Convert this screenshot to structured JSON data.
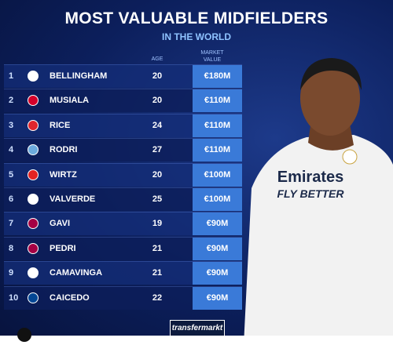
{
  "title": "MOST VALUABLE MIDFIELDERS",
  "subtitle": "IN THE WORLD",
  "headers": {
    "age": "AGE",
    "market_value": "MARKET VALUE"
  },
  "rows": [
    {
      "rank": 1,
      "name": "BELLINGHAM",
      "age": 20,
      "value": "€180M"
    },
    {
      "rank": 2,
      "name": "MUSIALA",
      "age": 20,
      "value": "€110M"
    },
    {
      "rank": 3,
      "name": "RICE",
      "age": 24,
      "value": "€110M"
    },
    {
      "rank": 4,
      "name": "RODRI",
      "age": 27,
      "value": "€110M"
    },
    {
      "rank": 5,
      "name": "WIRTZ",
      "age": 20,
      "value": "€100M"
    },
    {
      "rank": 6,
      "name": "VALVERDE",
      "age": 25,
      "value": "€100M"
    },
    {
      "rank": 7,
      "name": "GAVI",
      "age": 19,
      "value": "€90M"
    },
    {
      "rank": 8,
      "name": "PEDRI",
      "age": 21,
      "value": "€90M"
    },
    {
      "rank": 9,
      "name": "CAMAVINGA",
      "age": 21,
      "value": "€90M"
    },
    {
      "rank": 10,
      "name": "CAICEDO",
      "age": 22,
      "value": "€90M"
    }
  ],
  "shirt_sponsor": "Emirates",
  "shirt_tagline": "FLY BETTER",
  "logo": "transfermarkt"
}
